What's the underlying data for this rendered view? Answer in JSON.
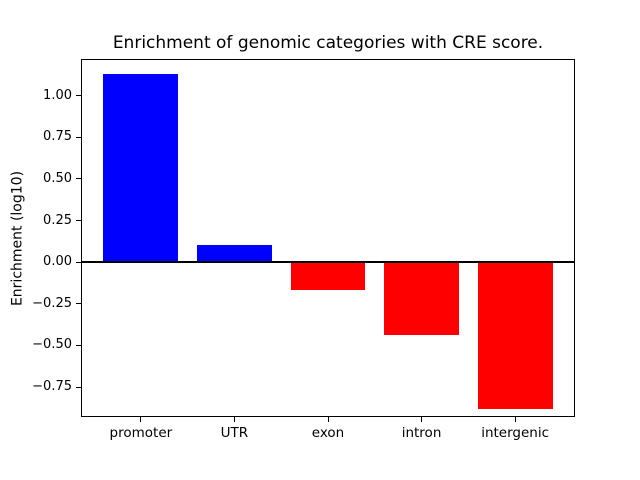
{
  "figure": {
    "background": "#ffffff"
  },
  "chart_data": {
    "type": "bar",
    "title": "Enrichment of genomic categories with CRE score.",
    "xlabel": "",
    "ylabel": "Enrichment (log10)",
    "categories": [
      "promoter",
      "UTR",
      "exon",
      "intron",
      "intergenic"
    ],
    "values": [
      1.13,
      0.1,
      -0.17,
      -0.44,
      -0.88
    ],
    "bar_colors": [
      "#0000ff",
      "#0000ff",
      "#ff0000",
      "#ff0000",
      "#ff0000"
    ],
    "positive_color": "#0000ff",
    "negative_color": "#ff0000",
    "ylim": [
      -0.93,
      1.22
    ],
    "yticks": [
      1.0,
      0.75,
      0.5,
      0.25,
      0.0,
      -0.25,
      -0.5,
      -0.75
    ],
    "ytick_labels": [
      "1.00",
      "0.75",
      "0.50",
      "0.25",
      "0.00",
      "−0.25",
      "−0.50",
      "−0.75"
    ],
    "bar_width_fraction": 0.8,
    "x_margin": 0.24,
    "grid": false,
    "legend": null,
    "zero_line": true,
    "axis_color": "#000000",
    "text_color": "#000000"
  }
}
